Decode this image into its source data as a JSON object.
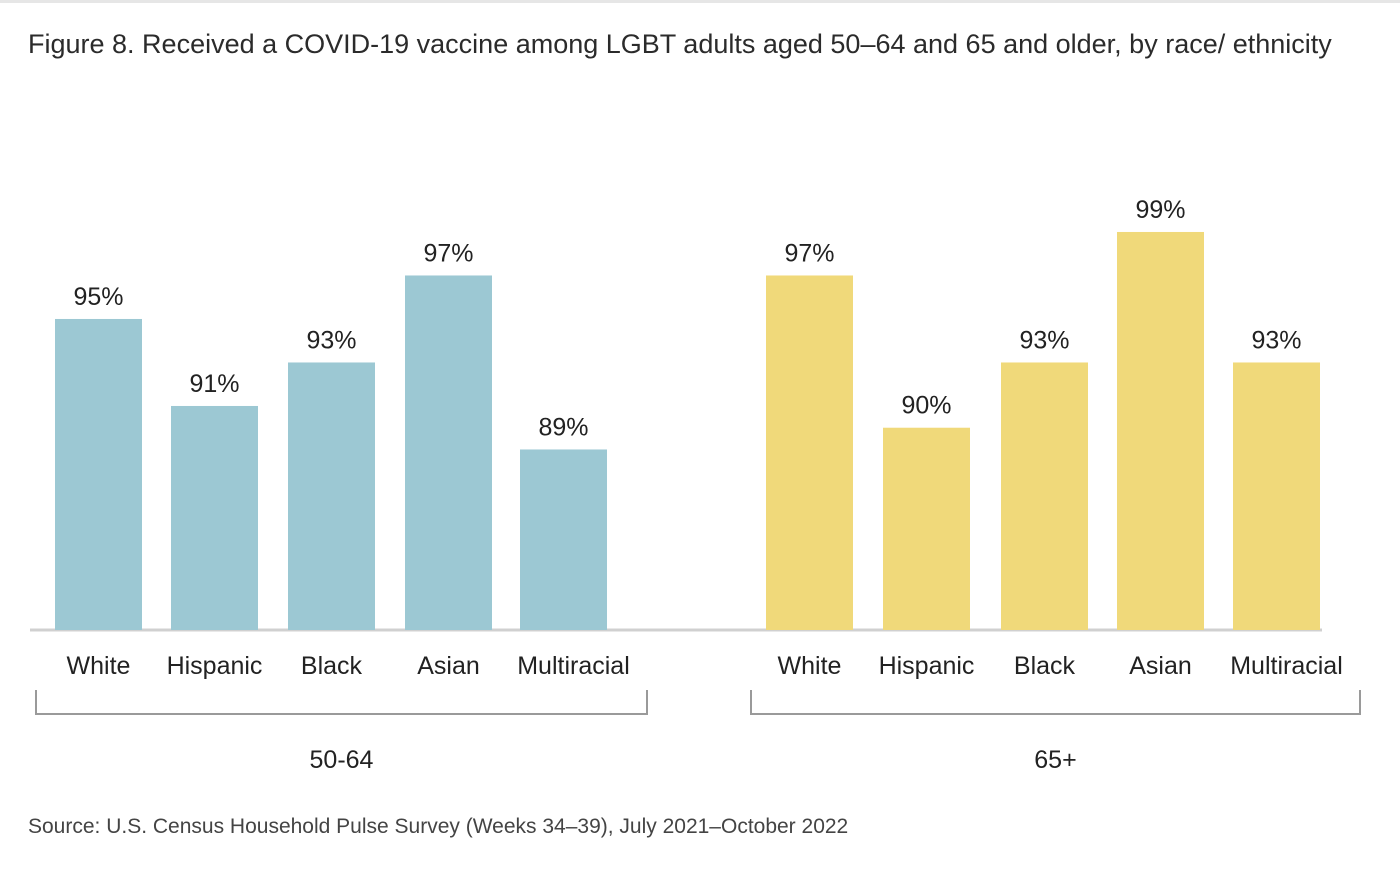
{
  "title": "Figure 8. Received a COVID-19 vaccine among LGBT adults aged 50–64 and 65 and older, by race/ ethnicity",
  "source": "Source: U.S. Census Household Pulse Survey (Weeks 34–39), July 2021–October 2022",
  "chart_data": {
    "type": "bar",
    "title": "Figure 8. Received a COVID-19 vaccine among LGBT adults aged 50–64 and 65 and older, by race/ ethnicity",
    "categories": [
      "White",
      "Hispanic",
      "Black",
      "Asian",
      "Multiracial"
    ],
    "groups": [
      {
        "name": "50-64",
        "color": "#9cc8d3",
        "values": [
          95,
          91,
          93,
          97,
          89
        ],
        "labels": [
          "95%",
          "91%",
          "93%",
          "97%",
          "89%"
        ]
      },
      {
        "name": "65+",
        "color": "#f0d97a",
        "values": [
          97,
          90,
          93,
          99,
          93
        ],
        "labels": [
          "97%",
          "90%",
          "93%",
          "99%",
          "93%"
        ]
      }
    ],
    "ylabel": "",
    "xlabel": "",
    "grid": false,
    "legend": "none"
  }
}
